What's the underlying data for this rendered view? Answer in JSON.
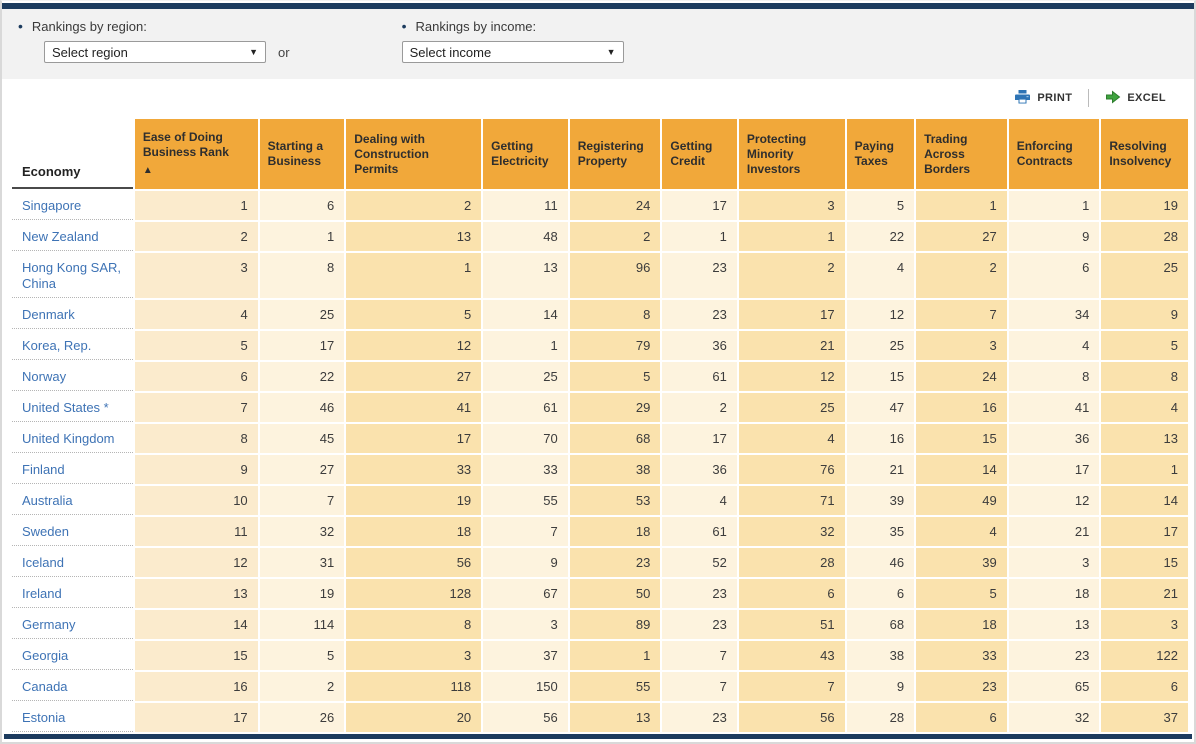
{
  "filters": {
    "region_label": "Rankings by region:",
    "region_value": "Select region",
    "or_label": "or",
    "income_label": "Rankings by income:",
    "income_value": "Select income"
  },
  "toolbar": {
    "print_label": "PRINT",
    "excel_label": "EXCEL"
  },
  "table": {
    "economy_header": "Economy",
    "sort_icon": "▲",
    "columns": [
      {
        "label": "Ease of Doing Business Rank",
        "sorted": true,
        "shade": "sorted"
      },
      {
        "label": "Starting a Business",
        "sorted": false,
        "shade": "light"
      },
      {
        "label": "Dealing with Construction Permits",
        "sorted": false,
        "shade": "dark"
      },
      {
        "label": "Getting Electricity",
        "sorted": false,
        "shade": "light"
      },
      {
        "label": "Registering Property",
        "sorted": false,
        "shade": "dark"
      },
      {
        "label": "Getting Credit",
        "sorted": false,
        "shade": "light"
      },
      {
        "label": "Protecting Minority Investors",
        "sorted": false,
        "shade": "dark"
      },
      {
        "label": "Paying Taxes",
        "sorted": false,
        "shade": "light"
      },
      {
        "label": "Trading Across Borders",
        "sorted": false,
        "shade": "dark"
      },
      {
        "label": "Enforcing Contracts",
        "sorted": false,
        "shade": "light"
      },
      {
        "label": "Resolving Insolvency",
        "sorted": false,
        "shade": "dark"
      }
    ],
    "rows": [
      {
        "economy": "Singapore",
        "values": [
          1,
          6,
          2,
          11,
          24,
          17,
          3,
          5,
          1,
          1,
          19
        ]
      },
      {
        "economy": "New Zealand",
        "values": [
          2,
          1,
          13,
          48,
          2,
          1,
          1,
          22,
          27,
          9,
          28
        ]
      },
      {
        "economy": "Hong Kong SAR, China",
        "values": [
          3,
          8,
          1,
          13,
          96,
          23,
          2,
          4,
          2,
          6,
          25
        ]
      },
      {
        "economy": "Denmark",
        "values": [
          4,
          25,
          5,
          14,
          8,
          23,
          17,
          12,
          7,
          34,
          9
        ]
      },
      {
        "economy": "Korea, Rep.",
        "values": [
          5,
          17,
          12,
          1,
          79,
          36,
          21,
          25,
          3,
          4,
          5
        ]
      },
      {
        "economy": "Norway",
        "values": [
          6,
          22,
          27,
          25,
          5,
          61,
          12,
          15,
          24,
          8,
          8
        ]
      },
      {
        "economy": "United States *",
        "values": [
          7,
          46,
          41,
          61,
          29,
          2,
          25,
          47,
          16,
          41,
          4
        ]
      },
      {
        "economy": "United Kingdom",
        "values": [
          8,
          45,
          17,
          70,
          68,
          17,
          4,
          16,
          15,
          36,
          13
        ]
      },
      {
        "economy": "Finland",
        "values": [
          9,
          27,
          33,
          33,
          38,
          36,
          76,
          21,
          14,
          17,
          1
        ]
      },
      {
        "economy": "Australia",
        "values": [
          10,
          7,
          19,
          55,
          53,
          4,
          71,
          39,
          49,
          12,
          14
        ]
      },
      {
        "economy": "Sweden",
        "values": [
          11,
          32,
          18,
          7,
          18,
          61,
          32,
          35,
          4,
          21,
          17
        ]
      },
      {
        "economy": "Iceland",
        "values": [
          12,
          31,
          56,
          9,
          23,
          52,
          28,
          46,
          39,
          3,
          15
        ]
      },
      {
        "economy": "Ireland",
        "values": [
          13,
          19,
          128,
          67,
          50,
          23,
          6,
          6,
          5,
          18,
          21
        ]
      },
      {
        "economy": "Germany",
        "values": [
          14,
          114,
          8,
          3,
          89,
          23,
          51,
          68,
          18,
          13,
          3
        ]
      },
      {
        "economy": "Georgia",
        "values": [
          15,
          5,
          3,
          37,
          1,
          7,
          43,
          38,
          33,
          23,
          122
        ]
      },
      {
        "economy": "Canada",
        "values": [
          16,
          2,
          118,
          150,
          55,
          7,
          7,
          9,
          23,
          65,
          6
        ]
      },
      {
        "economy": "Estonia",
        "values": [
          17,
          26,
          20,
          56,
          13,
          23,
          56,
          28,
          6,
          32,
          37
        ]
      }
    ]
  },
  "colors": {
    "header_orange": "#f1a83a",
    "cell_sorted": "#fbebcd",
    "cell_light": "#fdf3de",
    "cell_dark": "#fae2ad",
    "link_blue": "#3e73b5",
    "navy_bar": "#1c3b5e",
    "filter_band_gray": "#f2f2f2",
    "print_icon_blue": "#2e74b5",
    "excel_icon_green": "#3fa33f"
  }
}
